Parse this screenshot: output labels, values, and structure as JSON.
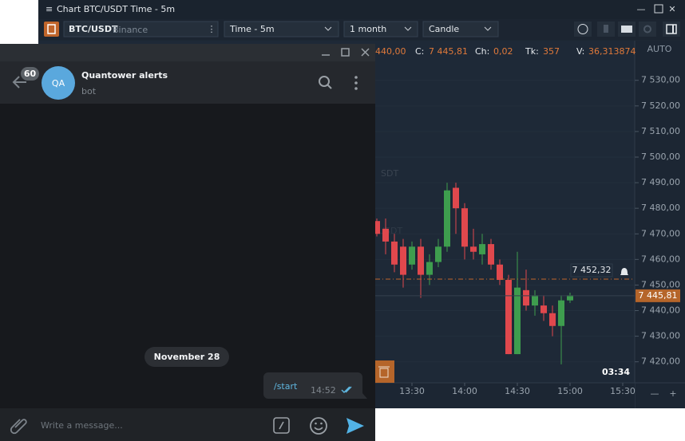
{
  "window": {
    "title": "Chart BTC/USDT Time - 5m",
    "symbol": "BTC/USDT",
    "exchange": "Binance",
    "timeframe": "Time - 5m",
    "period": "1 month",
    "style": "Candle"
  },
  "info": {
    "o": "440,00",
    "c_label": "C:",
    "c": "7 445,81",
    "ch_label": "Ch:",
    "ch": "0,02",
    "tk_label": "Tk:",
    "tk": "357",
    "v_label": "V:",
    "v": "36,313874"
  },
  "chart_data": {
    "type": "candlestick",
    "scale_mode": "AUTO",
    "watermark": [
      "SDT",
      "USDT"
    ],
    "categories": [
      null,
      null,
      null,
      null,
      "13:30",
      null,
      null,
      null,
      null,
      null,
      "14:00",
      null,
      null,
      null,
      null,
      null,
      "14:30",
      null,
      null,
      null,
      null,
      null,
      "15:00",
      null,
      null,
      null,
      null,
      null,
      "15:30"
    ],
    "open": [
      7475,
      7472,
      7467,
      7465,
      7458,
      7465,
      7454,
      7459,
      7465,
      7488,
      7480,
      7465,
      7462,
      7466,
      7458,
      7452,
      7423,
      7448,
      7442,
      7442,
      7439,
      7434,
      7444,
      null,
      null,
      null,
      null,
      null,
      null
    ],
    "high": [
      7476,
      7476,
      7470,
      7468,
      7467,
      7468,
      7462,
      7468,
      7490,
      7490,
      7482,
      7472,
      7470,
      7468,
      7460,
      7454,
      7463,
      7456,
      7448,
      7446,
      7442,
      7446,
      7447,
      null,
      null,
      null,
      null,
      null,
      null
    ],
    "low": [
      7469,
      7462,
      7455,
      7449,
      7456,
      7445,
      7450,
      7457,
      7463,
      7470,
      7460,
      7460,
      7458,
      7456,
      7450,
      7423,
      7423,
      7440,
      7438,
      7436,
      7430,
      7419,
      7443,
      null,
      null,
      null,
      null,
      null,
      null
    ],
    "close": [
      7470,
      7467,
      7458,
      7454,
      7465,
      7454,
      7459,
      7465,
      7487,
      7480,
      7465,
      7463,
      7466,
      7458,
      7452,
      7423,
      7449,
      7442,
      7446,
      7439,
      7434,
      7444,
      7446,
      null,
      null,
      null,
      null,
      null,
      null
    ],
    "up_color": "#3e9d4e",
    "down_color": "#e0484d",
    "ylim": [
      7411.8,
      7545.5
    ],
    "yticks": [
      {
        "value": 7420,
        "label": "7 420,00"
      },
      {
        "value": 7430,
        "label": "7 430,00"
      },
      {
        "value": 7440,
        "label": "7 440,00"
      },
      {
        "value": 7450,
        "label": "7 450,00"
      },
      {
        "value": 7460,
        "label": "7 460,00"
      },
      {
        "value": 7470,
        "label": "7 470,00"
      },
      {
        "value": 7480,
        "label": "7 480,00"
      },
      {
        "value": 7490,
        "label": "7 490,00"
      },
      {
        "value": 7500,
        "label": "7 500,00"
      },
      {
        "value": 7510,
        "label": "7 510,00"
      },
      {
        "value": 7520,
        "label": "7 520,00"
      },
      {
        "value": 7530,
        "label": "7 530,00"
      }
    ],
    "grid": true,
    "last_price": {
      "value": 7445.81,
      "label": "7 445,81"
    },
    "alert": {
      "value": 7452.32,
      "label": "7 452,32"
    },
    "timer": "03:34"
  },
  "telegram": {
    "badge": "60",
    "avatar": "QA",
    "name": "Quantower alerts",
    "status": "bot",
    "date": "November 28",
    "message": "/start",
    "message_time": "14:52",
    "placeholder": "Write a message..."
  }
}
